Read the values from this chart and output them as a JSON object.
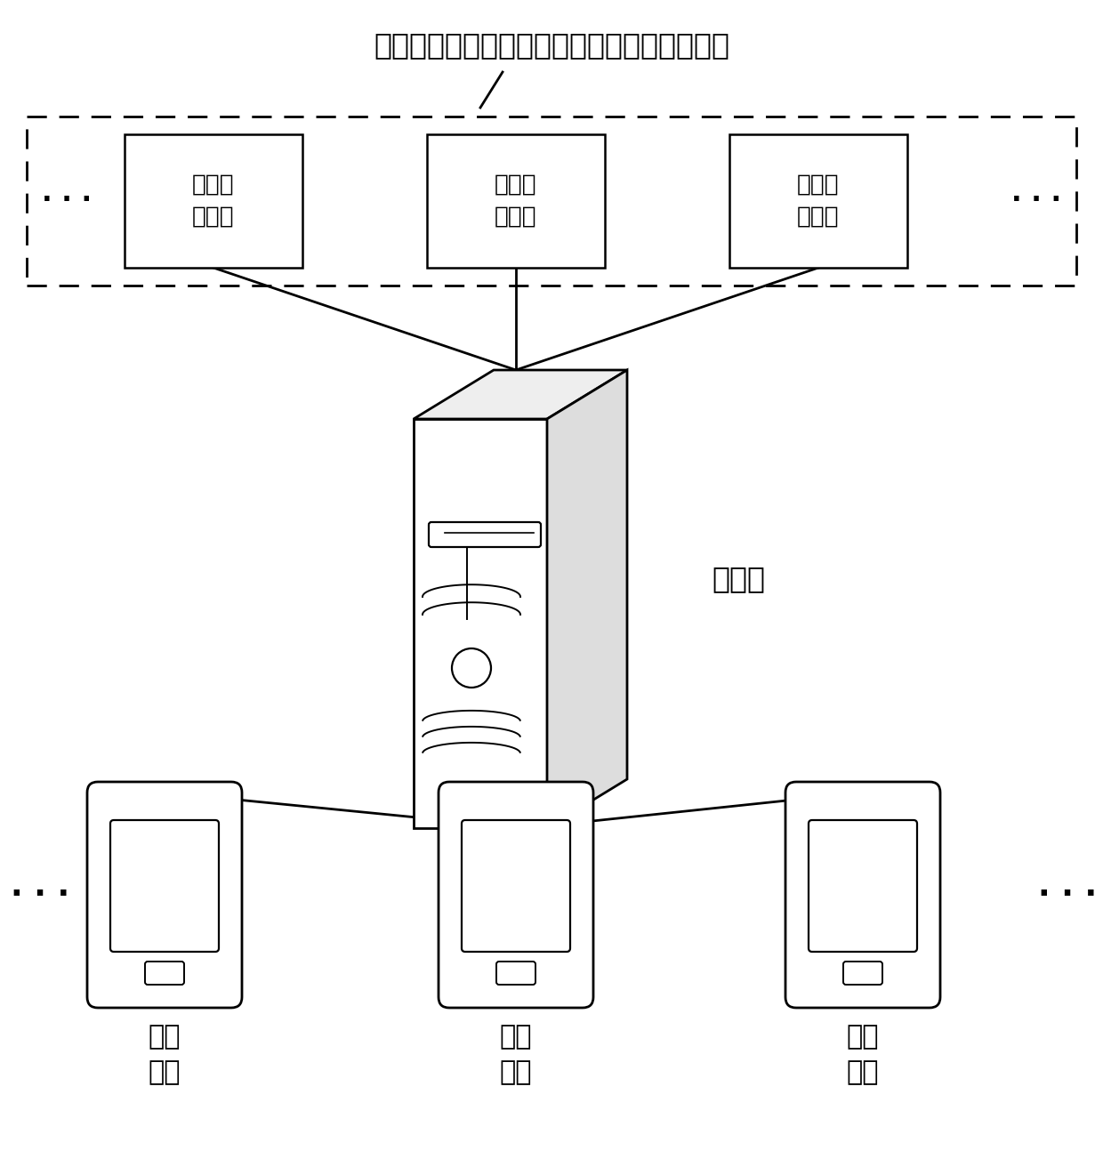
{
  "title": "某国家或某城市的地震预警机构（如地震台）",
  "title_fontsize": 24,
  "monitor_label": "地震监\n测设备",
  "server_label": "服务器",
  "terminal_label": "终端\n设备",
  "dots": "· · ·",
  "bg_color": "#ffffff",
  "line_color": "#000000",
  "text_color": "#000000",
  "font_size_box": 19,
  "font_size_label": 22,
  "font_size_dots": 22
}
